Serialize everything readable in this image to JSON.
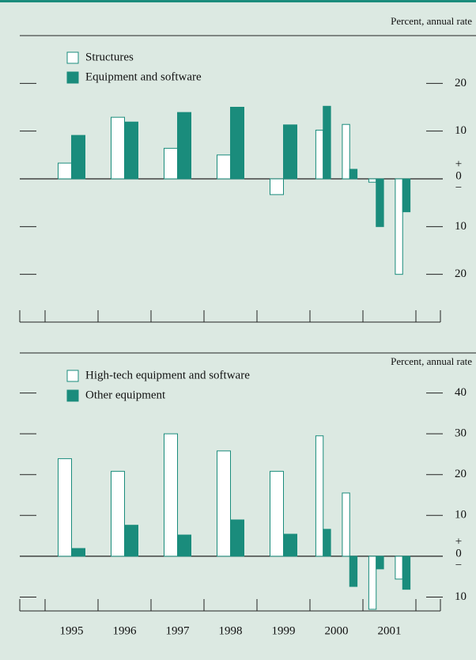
{
  "chart_data": [
    {
      "type": "bar",
      "axis_note": "Percent, annual rate",
      "series": [
        {
          "name": "Structures",
          "color": "#ffffff",
          "values": [
            3.3,
            12.9,
            6.4,
            5,
            -3.3,
            10.2,
            11.4,
            -0.7,
            -20
          ]
        },
        {
          "name": "Equipment and software",
          "color": "#1a8c7c",
          "values": [
            9.1,
            11.9,
            13.9,
            15,
            11.3,
            15.2,
            2,
            -10,
            -6.9
          ]
        }
      ],
      "ylim": [
        -30,
        30
      ],
      "yticks": [
        20,
        10,
        0,
        {
          "value": -10,
          "label": "10"
        },
        {
          "value": -20,
          "label": "20"
        }
      ],
      "sign_labels": [
        "+",
        "−"
      ]
    },
    {
      "type": "bar",
      "axis_note": "Percent, annual rate",
      "categories": [
        "1995",
        "1996",
        "1997",
        "1998",
        "1999",
        "2000",
        null,
        "2001",
        null
      ],
      "series": [
        {
          "name": "High-tech equipment and software",
          "color": "#ffffff",
          "values": [
            23.9,
            20.8,
            30,
            25.8,
            20.8,
            29.5,
            15.5,
            -13,
            -5.6
          ]
        },
        {
          "name": "Other equipment",
          "color": "#1a8c7c",
          "values": [
            1.9,
            7.6,
            5.2,
            8.9,
            5.4,
            6.6,
            -7.4,
            -3.1,
            -8.1
          ]
        }
      ],
      "ylim": [
        -13.4,
        50
      ],
      "yticks": [
        40,
        30,
        20,
        10,
        0,
        {
          "value": -10,
          "label": "10"
        }
      ],
      "sign_labels": [
        "+",
        "−"
      ]
    }
  ]
}
